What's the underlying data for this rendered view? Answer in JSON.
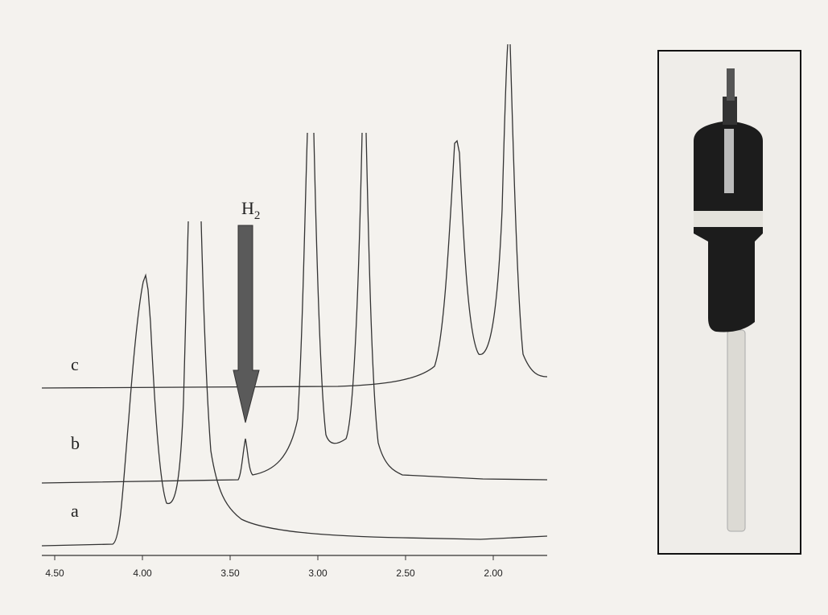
{
  "figure": {
    "trace_labels": [
      "c",
      "b",
      "a"
    ],
    "arrow_label": {
      "text": "H",
      "subscript": "2"
    },
    "axis_ticks": [
      "4.50",
      "4.00",
      "3.50",
      "3.00",
      "2.50",
      "2.00"
    ]
  }
}
